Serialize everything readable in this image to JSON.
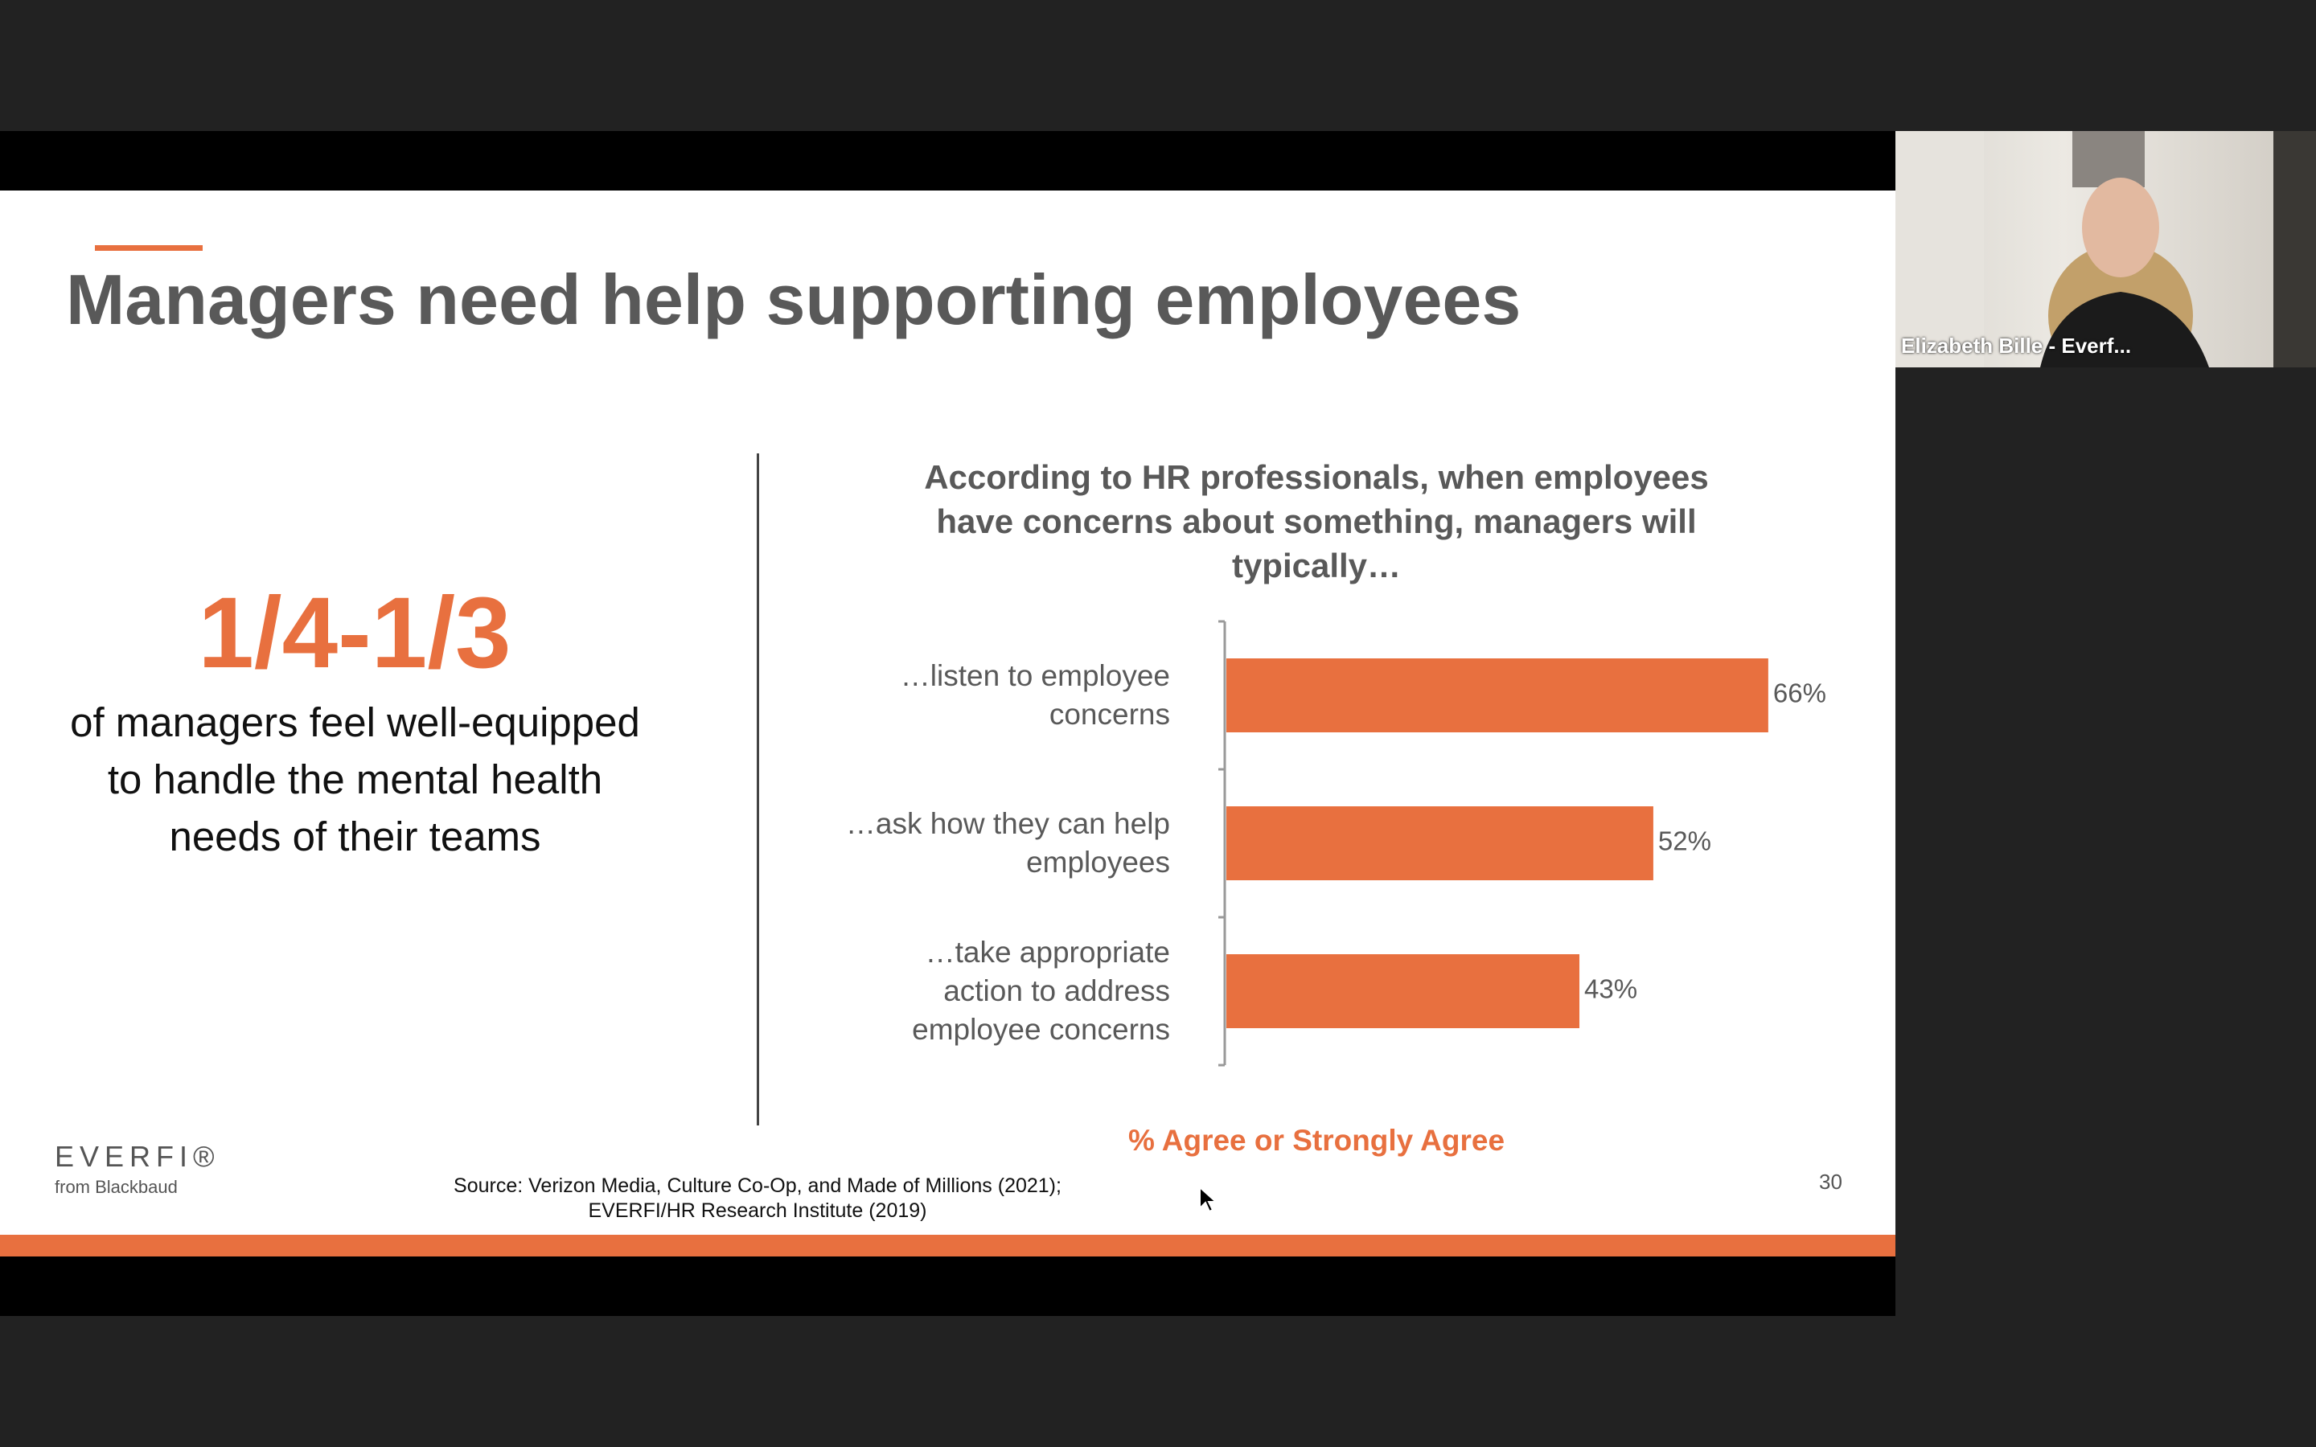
{
  "slide": {
    "title": "Managers need help supporting employees",
    "stat": "1/4-1/3",
    "stat_text": "of managers feel well-equipped to handle the mental health needs of their teams",
    "logo": "EVERFI®",
    "logo_sub": "from Blackbaud",
    "source": [
      "Source: Verizon Media, Culture Co-Op, and Made of Millions (2021);",
      "EVERFI/HR Research Institute (2019)"
    ],
    "page_number": "30"
  },
  "chart_data": {
    "type": "bar",
    "orientation": "horizontal",
    "title": "According to HR professionals, when employees have concerns about something, managers will typically…",
    "categories": [
      "…listen to employee concerns",
      "…ask how they can help employees",
      "…take appropriate action to address employee concerns"
    ],
    "values": [
      66,
      52,
      43
    ],
    "value_labels": [
      "66%",
      "52%",
      "43%"
    ],
    "color": "#e8703f",
    "xlabel": "% Agree or Strongly Agree"
  },
  "participant": {
    "name": "Elizabeth Bille - Everf..."
  }
}
